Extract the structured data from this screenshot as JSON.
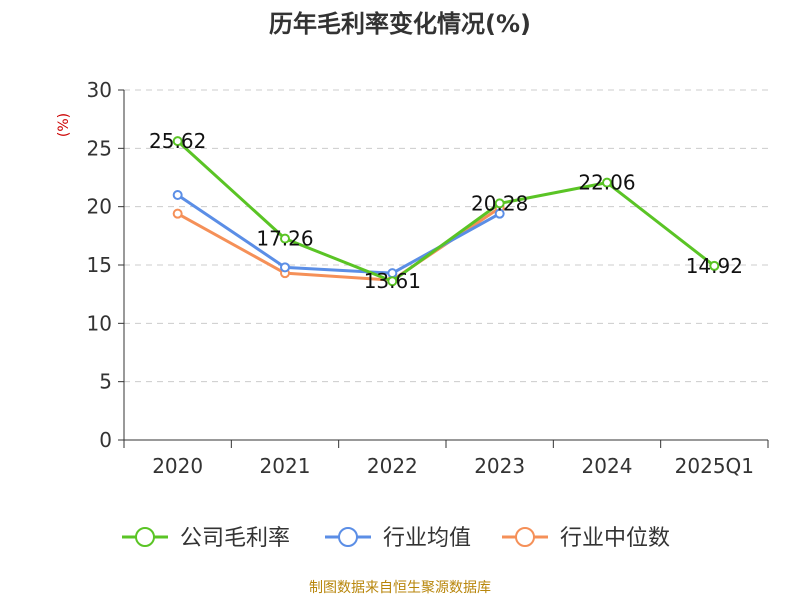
{
  "chart_data": {
    "type": "line",
    "title": "历年毛利率变化情况(%)",
    "ylabel": "(%)",
    "categories": [
      "2020",
      "2021",
      "2022",
      "2023",
      "2024",
      "2025Q1"
    ],
    "ylim": [
      0,
      30
    ],
    "yticks": [
      0,
      5,
      10,
      15,
      20,
      25,
      30
    ],
    "grid": true,
    "legend_position": "bottom",
    "series": [
      {
        "name": "公司毛利率",
        "color": "#5ac425",
        "values": [
          25.62,
          17.26,
          13.61,
          20.28,
          22.06,
          14.92
        ],
        "labels": [
          "25.62",
          "17.26",
          "13.61",
          "20.28",
          "22.06",
          "14.92"
        ]
      },
      {
        "name": "行业均值",
        "color": "#5b8ee6",
        "values": [
          21.0,
          14.8,
          14.3,
          19.4,
          null,
          null
        ]
      },
      {
        "name": "行业中位数",
        "color": "#f59058",
        "values": [
          19.4,
          14.3,
          13.7,
          19.9,
          null,
          null
        ]
      }
    ],
    "source": "制图数据来自恒生聚源数据库"
  }
}
